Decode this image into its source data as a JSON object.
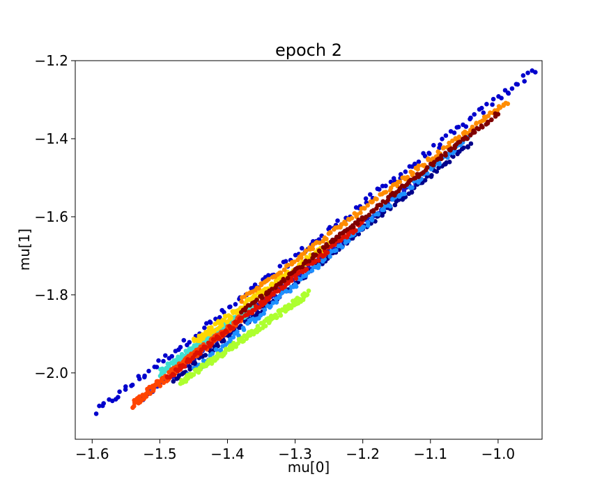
{
  "chart_data": {
    "type": "scatter",
    "title": "epoch 2",
    "xlabel": "mu[0]",
    "ylabel": "mu[1]",
    "xlim": [
      -1.625,
      -0.935
    ],
    "ylim": [
      -2.17,
      -1.2
    ],
    "xticks": [
      -1.6,
      -1.5,
      -1.4,
      -1.3,
      -1.2,
      -1.1,
      -1.0
    ],
    "xtick_labels": [
      "−1.6",
      "−1.5",
      "−1.4",
      "−1.3",
      "−1.2",
      "−1.1",
      "−1.0"
    ],
    "yticks": [
      -2.0,
      -1.8,
      -1.6,
      -1.4,
      -1.2
    ],
    "ytick_labels": [
      "−2.0",
      "−1.8",
      "−1.6",
      "−1.4",
      "−1.2"
    ],
    "grid": false,
    "legend": "none",
    "colormap": "jet",
    "series": [
      {
        "color": "#0000cc",
        "x0": -1.595,
        "x1": -0.945,
        "y0": -2.12,
        "y1": -1.24,
        "offset": 0.018,
        "spread": 0.01
      },
      {
        "color": "#1a1acc",
        "x0": -1.53,
        "x1": -1.12,
        "y0": -2.06,
        "y1": -1.5,
        "offset": -0.01,
        "spread": 0.008
      },
      {
        "color": "#00008b",
        "x0": -1.48,
        "x1": -1.04,
        "y0": -2.0,
        "y1": -1.39,
        "offset": -0.02,
        "spread": 0.006
      },
      {
        "color": "#1e90ff",
        "x0": -1.46,
        "x1": -1.04,
        "y0": -1.98,
        "y1": -1.36,
        "offset": -0.03,
        "spread": 0.008
      },
      {
        "color": "#40e0d0",
        "x0": -1.5,
        "x1": -1.36,
        "y0": -2.01,
        "y1": -1.84,
        "offset": 0.01,
        "spread": 0.01
      },
      {
        "color": "#adff2f",
        "x0": -1.47,
        "x1": -1.28,
        "y0": -1.99,
        "y1": -1.76,
        "offset": -0.035,
        "spread": 0.008
      },
      {
        "color": "#ffd700",
        "x0": -1.45,
        "x1": -1.25,
        "y0": -1.94,
        "y1": -1.69,
        "offset": 0.018,
        "spread": 0.01
      },
      {
        "color": "#ff8c00",
        "x0": -1.38,
        "x1": -0.985,
        "y0": -1.82,
        "y1": -1.31,
        "offset": 0.006,
        "spread": 0.006
      },
      {
        "color": "#ff4500",
        "x0": -1.54,
        "x1": -1.38,
        "y0": -2.08,
        "y1": -1.86,
        "offset": 0.0,
        "spread": 0.01
      },
      {
        "color": "#dd1100",
        "x0": -1.49,
        "x1": -1.2,
        "y0": -2.01,
        "y1": -1.61,
        "offset": -0.005,
        "spread": 0.007
      },
      {
        "color": "#800000",
        "x0": -1.38,
        "x1": -1.0,
        "y0": -1.84,
        "y1": -1.33,
        "offset": -0.005,
        "spread": 0.005
      }
    ]
  }
}
